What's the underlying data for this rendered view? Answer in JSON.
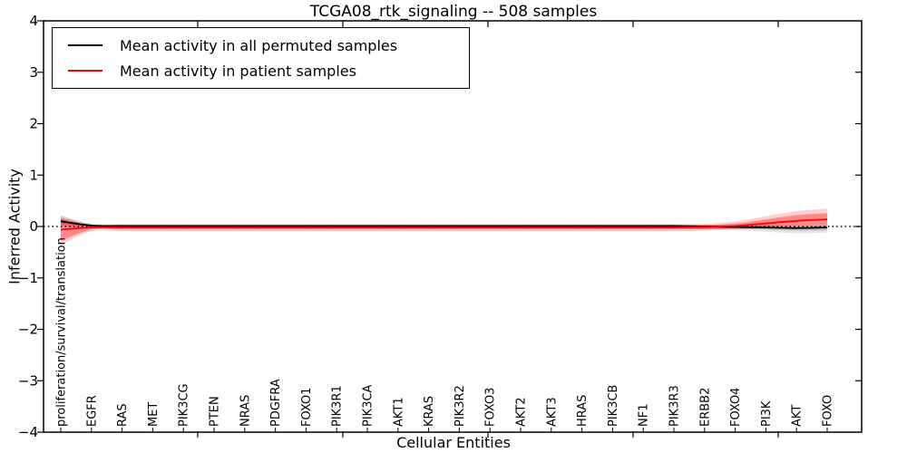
{
  "title": "TCGA08_rtk_signaling -- 508 samples",
  "axes": {
    "xlabel": "Cellular Entities",
    "ylabel": "Inferred Activity",
    "y_ticks": [
      "4",
      "3",
      "2",
      "1",
      "0",
      "−1",
      "−2",
      "−3",
      "−4"
    ],
    "ylim": [
      -4,
      4
    ]
  },
  "legend": {
    "position": "upper left",
    "items": [
      {
        "label": "Mean activity in all permuted samples",
        "color": "#000000"
      },
      {
        "label": "Mean activity in patient samples",
        "color": "#ff0000"
      }
    ]
  },
  "chart_data": {
    "type": "line",
    "title": "TCGA08_rtk_signaling -- 508 samples",
    "xlabel": "Cellular Entities",
    "ylabel": "Inferred Activity",
    "ylim": [
      -4,
      4
    ],
    "grid": false,
    "zero_reference_line": true,
    "legend_position": "upper left",
    "categories": [
      "proliferation/survival/translation",
      "EGFR",
      "RAS",
      "MET",
      "PIK3CG",
      "PTEN",
      "NRAS",
      "PDGFRA",
      "FOXO1",
      "PIK3R1",
      "PIK3CA",
      "AKT1",
      "KRAS",
      "PIK3R2",
      "FOXO3",
      "AKT2",
      "AKT3",
      "HRAS",
      "PIK3CB",
      "NF1",
      "PIK3R3",
      "ERBB2",
      "FOXO4",
      "PI3K",
      "AKT",
      "FOXO"
    ],
    "series": [
      {
        "name": "Mean activity in all permuted samples",
        "color": "#000000",
        "values": [
          0.1,
          0.02,
          0.01,
          0.01,
          0.01,
          0.01,
          0.01,
          0.01,
          0.01,
          0.01,
          0.01,
          0.01,
          0.01,
          0.01,
          0.01,
          0.01,
          0.01,
          0.01,
          0.01,
          0.01,
          0.01,
          0.0,
          -0.01,
          -0.02,
          -0.03,
          -0.02
        ],
        "band_inner_low": [
          0.04,
          -0.01,
          -0.01,
          -0.01,
          -0.01,
          -0.01,
          -0.01,
          -0.01,
          -0.01,
          -0.01,
          -0.01,
          -0.01,
          -0.01,
          -0.01,
          -0.01,
          -0.01,
          -0.01,
          -0.01,
          -0.01,
          -0.01,
          -0.02,
          -0.03,
          -0.04,
          -0.06,
          -0.08,
          -0.07
        ],
        "band_inner_high": [
          0.16,
          0.04,
          0.03,
          0.03,
          0.03,
          0.03,
          0.03,
          0.03,
          0.03,
          0.03,
          0.03,
          0.03,
          0.03,
          0.03,
          0.03,
          0.03,
          0.03,
          0.03,
          0.03,
          0.03,
          0.03,
          0.02,
          0.02,
          0.01,
          0.01,
          0.02
        ],
        "band_outer_low": [
          0.0,
          -0.03,
          -0.03,
          -0.03,
          -0.03,
          -0.03,
          -0.03,
          -0.03,
          -0.03,
          -0.03,
          -0.03,
          -0.03,
          -0.03,
          -0.03,
          -0.03,
          -0.03,
          -0.03,
          -0.03,
          -0.03,
          -0.03,
          -0.04,
          -0.05,
          -0.07,
          -0.1,
          -0.13,
          -0.12
        ],
        "band_outer_high": [
          0.2,
          0.06,
          0.05,
          0.05,
          0.05,
          0.05,
          0.05,
          0.05,
          0.05,
          0.05,
          0.05,
          0.05,
          0.05,
          0.05,
          0.05,
          0.05,
          0.05,
          0.05,
          0.05,
          0.05,
          0.05,
          0.04,
          0.03,
          0.03,
          0.03,
          0.03
        ]
      },
      {
        "name": "Mean activity in patient samples",
        "color": "#ff0000",
        "values": [
          -0.06,
          -0.02,
          -0.02,
          -0.02,
          -0.02,
          -0.02,
          -0.02,
          -0.02,
          -0.02,
          -0.02,
          -0.02,
          -0.02,
          -0.02,
          -0.02,
          -0.02,
          -0.02,
          -0.02,
          -0.02,
          -0.02,
          -0.02,
          -0.02,
          -0.01,
          0.01,
          0.06,
          0.11,
          0.14
        ],
        "band_inner_low": [
          -0.28,
          -0.06,
          -0.06,
          -0.06,
          -0.06,
          -0.06,
          -0.06,
          -0.06,
          -0.06,
          -0.06,
          -0.06,
          -0.06,
          -0.06,
          -0.06,
          -0.06,
          -0.06,
          -0.06,
          -0.06,
          -0.06,
          -0.06,
          -0.06,
          -0.05,
          -0.03,
          0.0,
          0.02,
          0.03
        ],
        "band_inner_high": [
          0.15,
          0.02,
          0.02,
          0.02,
          0.02,
          0.02,
          0.02,
          0.02,
          0.02,
          0.02,
          0.02,
          0.02,
          0.02,
          0.02,
          0.02,
          0.02,
          0.02,
          0.02,
          0.02,
          0.02,
          0.02,
          0.03,
          0.06,
          0.14,
          0.22,
          0.26
        ],
        "band_outer_low": [
          -0.36,
          -0.09,
          -0.09,
          -0.09,
          -0.09,
          -0.09,
          -0.09,
          -0.09,
          -0.09,
          -0.09,
          -0.09,
          -0.09,
          -0.09,
          -0.09,
          -0.09,
          -0.09,
          -0.09,
          -0.09,
          -0.09,
          -0.09,
          -0.09,
          -0.08,
          -0.06,
          -0.03,
          -0.01,
          0.0
        ],
        "band_outer_high": [
          0.22,
          0.04,
          0.04,
          0.04,
          0.04,
          0.04,
          0.04,
          0.04,
          0.04,
          0.04,
          0.04,
          0.04,
          0.04,
          0.04,
          0.04,
          0.04,
          0.04,
          0.04,
          0.04,
          0.04,
          0.04,
          0.05,
          0.1,
          0.2,
          0.3,
          0.35
        ]
      }
    ]
  }
}
